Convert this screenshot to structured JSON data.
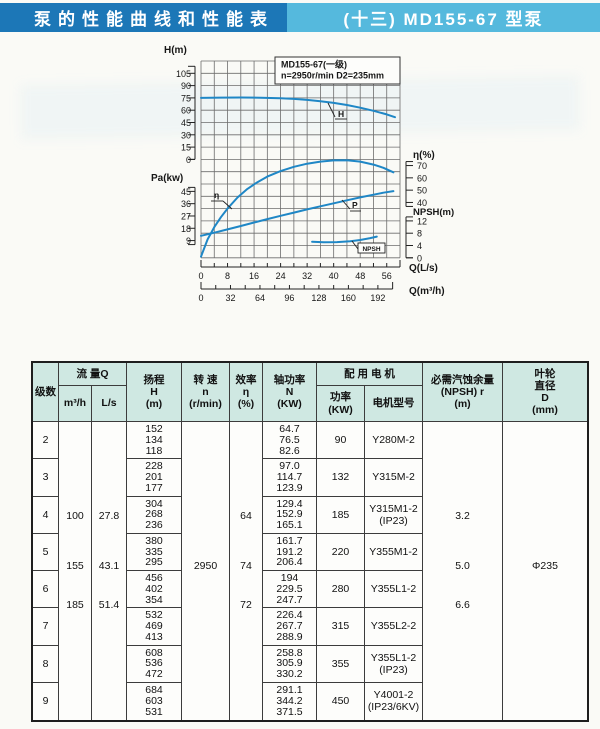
{
  "header": {
    "left_title": "泵的性能曲线和性能表",
    "right_title": "(十三) MD155-67 型泵",
    "left_bg": "#1c77b7",
    "right_bg": "#55b9dd"
  },
  "chart_data": {
    "type": "line",
    "title": "MD155-67(一级)",
    "subtitle": "n=2950r/min  D2=235mm",
    "curve_color": "#1f87c6",
    "grid": "on",
    "x_axis": {
      "label_ls": "Q(L/s)",
      "ticks_ls": [
        0,
        8,
        16,
        24,
        32,
        40,
        48,
        56
      ],
      "xlim_ls": [
        0,
        60
      ],
      "label_m3h": "Q(m³/h)",
      "ticks_m3h": [
        0,
        32,
        64,
        96,
        128,
        160,
        192
      ],
      "xlim_m3h": [
        0,
        208
      ]
    },
    "y_axes": {
      "H": {
        "label": "H(m)",
        "ticks": [
          105,
          90,
          75,
          60,
          45,
          30,
          15,
          0
        ]
      },
      "Pa": {
        "label": "Pa(kw)",
        "ticks": [
          45,
          36,
          27,
          18,
          9
        ]
      },
      "eta": {
        "label": "η(%)",
        "ticks": [
          70,
          60,
          50,
          40
        ]
      },
      "npsh": {
        "label": "NPSH(m)",
        "ticks": [
          12,
          8,
          4,
          0
        ]
      }
    },
    "series": [
      {
        "name": "head-curve",
        "label": "H",
        "axis": "H",
        "points": [
          [
            0,
            75
          ],
          [
            6,
            75.4
          ],
          [
            12,
            75.5
          ],
          [
            18,
            75.2
          ],
          [
            24,
            74.5
          ],
          [
            28,
            73.8
          ],
          [
            32,
            72.6
          ],
          [
            36,
            71
          ],
          [
            40,
            68.9
          ],
          [
            44,
            66.3
          ],
          [
            48,
            63.1
          ],
          [
            52,
            59.3
          ],
          [
            56,
            54.9
          ],
          [
            58.5,
            51.5
          ]
        ]
      },
      {
        "name": "efficiency-curve",
        "label": "η",
        "axis": "eta",
        "points": [
          [
            0,
            -4
          ],
          [
            2,
            10
          ],
          [
            4,
            20
          ],
          [
            6,
            28
          ],
          [
            8,
            35
          ],
          [
            11,
            44
          ],
          [
            14,
            51
          ],
          [
            17,
            56.5
          ],
          [
            20,
            61
          ],
          [
            24,
            65.5
          ],
          [
            28,
            69
          ],
          [
            32,
            71.5
          ],
          [
            36,
            73.2
          ],
          [
            40,
            74.2
          ],
          [
            44,
            74.3
          ],
          [
            48,
            73.2
          ],
          [
            52,
            70.8
          ],
          [
            55,
            68.2
          ],
          [
            58,
            64.5
          ]
        ]
      },
      {
        "name": "power-curve",
        "label": "P",
        "axis": "Pa",
        "points": [
          [
            0,
            12.5
          ],
          [
            4,
            14.8
          ],
          [
            8,
            17.2
          ],
          [
            12,
            19.7
          ],
          [
            16,
            22.2
          ],
          [
            20,
            24.7
          ],
          [
            24,
            27.1
          ],
          [
            28,
            29.5
          ],
          [
            32,
            31.8
          ],
          [
            36,
            34.1
          ],
          [
            40,
            36.3
          ],
          [
            44,
            38.5
          ],
          [
            48,
            40.6
          ],
          [
            52,
            42.6
          ],
          [
            55,
            44
          ],
          [
            58,
            45.2
          ]
        ]
      },
      {
        "name": "npsh-curve",
        "label": "NPSH",
        "axis": "npsh",
        "points": [
          [
            33.5,
            5.2
          ],
          [
            37,
            5.05
          ],
          [
            41,
            5.1
          ],
          [
            45,
            5.4
          ],
          [
            48,
            5.8
          ],
          [
            51,
            6.4
          ],
          [
            53,
            6.9
          ]
        ]
      }
    ]
  },
  "table": {
    "headers": {
      "stages": "级数",
      "flow_group": "流 量Q",
      "flow_m3h": "m³/h",
      "flow_ls": "L/s",
      "head": "扬程\nH\n(m)",
      "speed": "转 速\nn\n(r/min)",
      "efficiency": "效率\nη\n(%)",
      "shaft_power": "轴功率\nN\n(KW)",
      "motor_group": "配 用 电 机",
      "motor_kw": "功率\n(KW)",
      "motor_model": "电机型号",
      "npshr": "必需汽蚀余量\n(NPSH) r\n(m)",
      "impeller": "叶轮\n直径\nD\n(mm)"
    },
    "rows": [
      {
        "stage": "2",
        "head": [
          "152",
          "134",
          "118"
        ],
        "shaft_power": [
          "64.7",
          "76.5",
          "82.6"
        ],
        "motor_kw": "90",
        "motor_model": "Y280M-2"
      },
      {
        "stage": "3",
        "head": [
          "228",
          "201",
          "177"
        ],
        "shaft_power": [
          "97.0",
          "114.7",
          "123.9"
        ],
        "motor_kw": "132",
        "motor_model": "Y315M-2"
      },
      {
        "stage": "4",
        "head": [
          "304",
          "268",
          "236"
        ],
        "shaft_power": [
          "129.4",
          "152.9",
          "165.1"
        ],
        "motor_kw": "185",
        "motor_model": "Y315M1-2\n(IP23)"
      },
      {
        "stage": "5",
        "head": [
          "380",
          "335",
          "295"
        ],
        "shaft_power": [
          "161.7",
          "191.2",
          "206.4"
        ],
        "motor_kw": "220",
        "motor_model": "Y355M1-2"
      },
      {
        "stage": "6",
        "head": [
          "456",
          "402",
          "354"
        ],
        "shaft_power": [
          "194",
          "229.5",
          "247.7"
        ],
        "motor_kw": "280",
        "motor_model": "Y355L1-2"
      },
      {
        "stage": "7",
        "head": [
          "532",
          "469",
          "413"
        ],
        "shaft_power": [
          "226.4",
          "267.7",
          "288.9"
        ],
        "motor_kw": "315",
        "motor_model": "Y355L2-2"
      },
      {
        "stage": "8",
        "head": [
          "608",
          "536",
          "472"
        ],
        "shaft_power": [
          "258.8",
          "305.9",
          "330.2"
        ],
        "motor_kw": "355",
        "motor_model": "Y355L1-2\n(IP23)"
      },
      {
        "stage": "9",
        "head": [
          "684",
          "603",
          "531"
        ],
        "shaft_power": [
          "291.1",
          "344.2",
          "371.5"
        ],
        "motor_kw": "450",
        "motor_model": "Y4001-2\n(IP23/6KV)"
      }
    ],
    "merged": {
      "flow_m3h": [
        {
          "value": "100",
          "top_pct": 31.5
        },
        {
          "value": "155",
          "top_pct": 48.3
        },
        {
          "value": "185",
          "top_pct": 61.5
        }
      ],
      "flow_ls": [
        {
          "value": "27.8",
          "top_pct": 31.5
        },
        {
          "value": "43.1",
          "top_pct": 48.3
        },
        {
          "value": "51.4",
          "top_pct": 61.5
        }
      ],
      "speed": [
        {
          "value": "2950",
          "top_pct": 48.3
        }
      ],
      "efficiency": [
        {
          "value": "64",
          "top_pct": 31.5
        },
        {
          "value": "74",
          "top_pct": 48.3
        },
        {
          "value": "72",
          "top_pct": 61.5
        }
      ],
      "npshr": [
        {
          "value": "3.2",
          "top_pct": 31.5
        },
        {
          "value": "5.0",
          "top_pct": 48.3
        },
        {
          "value": "6.6",
          "top_pct": 61.5
        }
      ],
      "impeller": [
        {
          "value": "Φ235",
          "top_pct": 48.3
        }
      ]
    }
  }
}
